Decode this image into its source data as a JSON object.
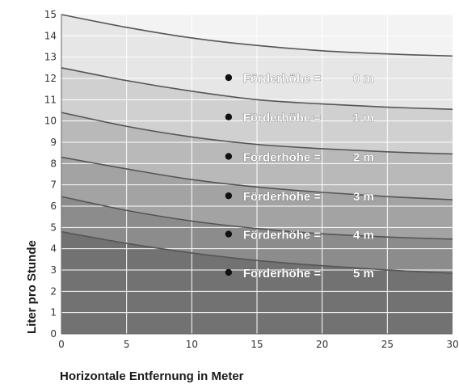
{
  "chart_data": {
    "type": "area",
    "xlabel": "Horizontale Entfernung in Meter",
    "ylabel": "Liter pro Stunde",
    "xlim": [
      0,
      30
    ],
    "ylim": [
      0,
      15
    ],
    "x_ticks": [
      0,
      5,
      10,
      15,
      20,
      25,
      30
    ],
    "y_ticks": [
      0,
      1,
      2,
      3,
      4,
      5,
      6,
      7,
      8,
      9,
      10,
      11,
      12,
      13,
      14,
      15
    ],
    "grid": true,
    "legend": "inline",
    "x": [
      0,
      5,
      10,
      15,
      20,
      25,
      30
    ],
    "series": [
      {
        "name": "Förderhöhe = 0 m",
        "label": "Förderhöhe =",
        "value_label": "0 m",
        "values": [
          15.0,
          14.4,
          13.9,
          13.55,
          13.3,
          13.15,
          13.05
        ],
        "color": "#e6e6e6"
      },
      {
        "name": "Förderhöhe = 1 m",
        "label": "Förderhöhe =",
        "value_label": "1 m",
        "values": [
          12.5,
          11.9,
          11.4,
          11.0,
          10.8,
          10.65,
          10.55
        ],
        "color": "#d0d0d0"
      },
      {
        "name": "Förderhöhe = 2 m",
        "label": "Förderhöhe =",
        "value_label": "2 m",
        "values": [
          10.4,
          9.75,
          9.25,
          8.9,
          8.7,
          8.55,
          8.45
        ],
        "color": "#b9b9b9"
      },
      {
        "name": "Förderhöhe = 3 m",
        "label": "Förderhöhe =",
        "value_label": "3 m",
        "values": [
          8.3,
          7.75,
          7.25,
          6.9,
          6.65,
          6.45,
          6.3
        ],
        "color": "#a3a3a3"
      },
      {
        "name": "Förderhöhe = 4 m",
        "label": "Förderhöhe =",
        "value_label": "4 m",
        "values": [
          6.45,
          5.8,
          5.3,
          4.95,
          4.7,
          4.55,
          4.45
        ],
        "color": "#8c8c8c"
      },
      {
        "name": "Förderhöhe = 5 m",
        "label": "Förderhöhe =",
        "value_label": "5 m",
        "values": [
          4.8,
          4.25,
          3.8,
          3.45,
          3.2,
          3.0,
          2.85
        ],
        "color": "#727272"
      }
    ],
    "label_anchor_x": 12.7,
    "label_anchor_y": [
      12.0,
      10.15,
      8.3,
      6.45,
      4.65,
      2.85
    ],
    "colors": {
      "top_region": "#f3f3f3",
      "curve_line": "#555555",
      "grid": "#ffffff"
    }
  }
}
